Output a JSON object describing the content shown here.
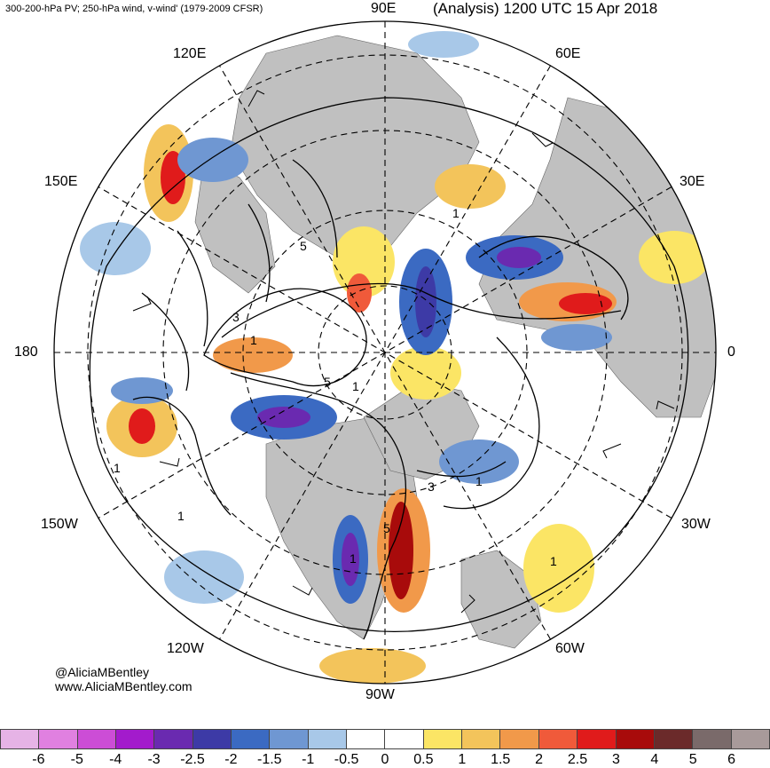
{
  "header": {
    "left": "300-200-hPa PV; 250-hPa wind, v-wind' (1979-2009 CFSR)",
    "right": "(Analysis) 1200 UTC 15 Apr 2018"
  },
  "map": {
    "projection": "north-polar-stereographic",
    "longitude_labels": {
      "e90": "90E",
      "e60": "60E",
      "e30": "30E",
      "zero": "0",
      "w30": "30W",
      "w60": "60W",
      "w90": "90W",
      "w120": "120W",
      "w150": "150W",
      "d180": "180",
      "e150": "150E",
      "e120": "120E"
    },
    "contour_labels": [
      "5",
      "3",
      "1",
      "1",
      "5",
      "3",
      "1",
      "1",
      "5",
      "1",
      "1",
      "1",
      "1"
    ],
    "colors": {
      "land": "#c0c0c0",
      "ocean": "#ffffff",
      "contour": "#000000",
      "positive_anomaly": "#e41a1c",
      "negative_anomaly": "#3a3aa8"
    }
  },
  "attribution": {
    "handle": "@AliciaMBentley",
    "url": "www.AliciaMBentley.com"
  },
  "colorbar": {
    "labels": [
      "-6",
      "-5",
      "-4",
      "-3",
      "-2.5",
      "-2",
      "-1.5",
      "-1",
      "-0.5",
      "0",
      "0.5",
      "1",
      "1.5",
      "2",
      "2.5",
      "3",
      "4",
      "5",
      "6"
    ],
    "colors": [
      "#e6b3e6",
      "#e080e0",
      "#cc4dd6",
      "#a31bcc",
      "#6a2ab0",
      "#3d3aa6",
      "#3b6ac2",
      "#6f97d2",
      "#a8c8e8",
      "#ffffff",
      "#ffffff",
      "#fbe565",
      "#f3c45b",
      "#f1994a",
      "#f05a3a",
      "#e01b1b",
      "#a80b0b",
      "#6b2a2a",
      "#7a6a6a",
      "#a89a9a"
    ]
  }
}
